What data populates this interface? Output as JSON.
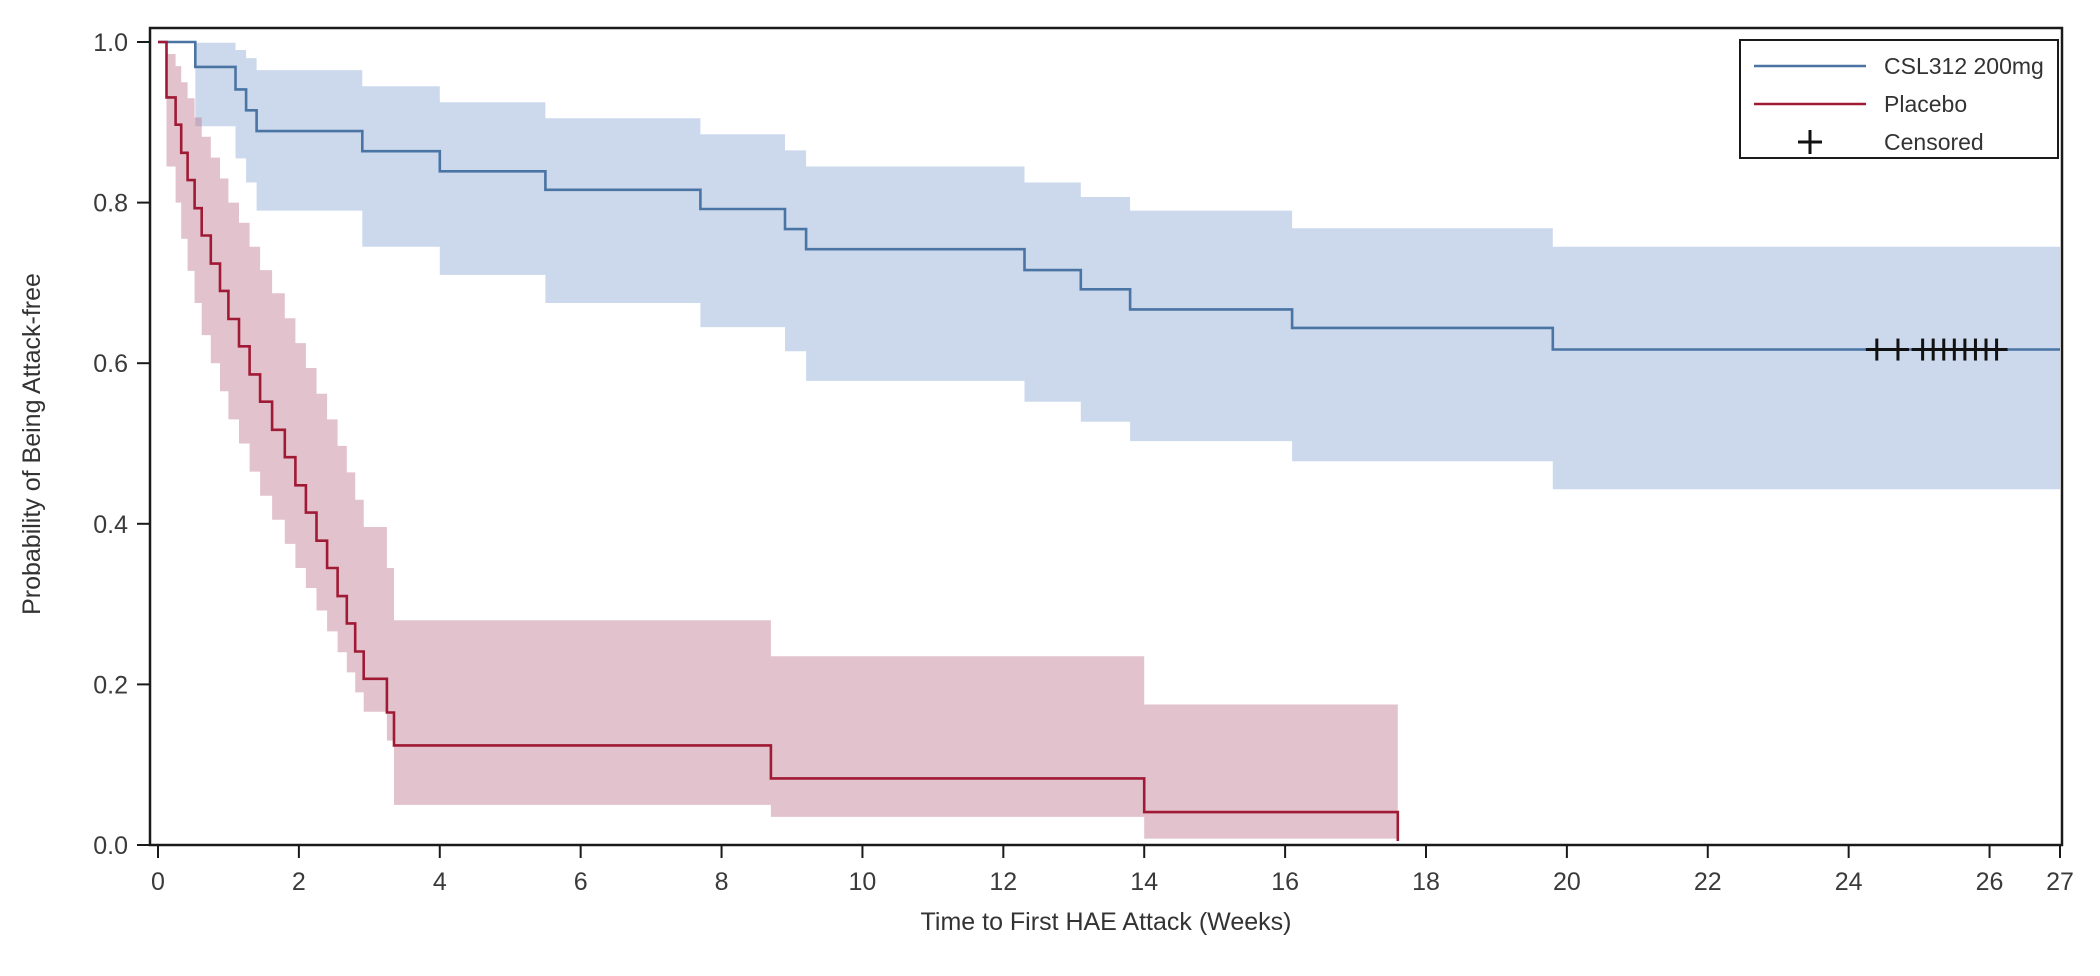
{
  "figure": {
    "background": "#ffffff"
  },
  "chart_data": {
    "type": "line",
    "subtype": "kaplan-meier-step",
    "title": "",
    "xlabel": "Time to First HAE Attack (Weeks)",
    "ylabel": "Probability of Being Attack-free",
    "xlim": [
      0,
      27
    ],
    "ylim": [
      0,
      1
    ],
    "grid": false,
    "x_ticks": [
      0,
      2,
      4,
      6,
      8,
      10,
      12,
      14,
      16,
      18,
      20,
      22,
      24,
      26,
      27
    ],
    "y_ticks": [
      {
        "v": 0.0,
        "label": "0.0"
      },
      {
        "v": 0.2,
        "label": "0.2"
      },
      {
        "v": 0.4,
        "label": "0.4"
      },
      {
        "v": 0.6,
        "label": "0.6"
      },
      {
        "v": 0.8,
        "label": "0.8"
      },
      {
        "v": 1.0,
        "label": "1.0"
      }
    ],
    "legend": {
      "position": "top-right",
      "entries": [
        {
          "label": "CSL312 200mg",
          "type": "line",
          "color": "#4a74a4"
        },
        {
          "label": "Placebo",
          "type": "line",
          "color": "#a01a35"
        },
        {
          "label": "Censored",
          "type": "marker",
          "marker": "+",
          "color": "#111111"
        }
      ]
    },
    "series": [
      {
        "name": "CSL312 200mg",
        "line_color": "#4a74a4",
        "band_color": "rgba(133,164,209,0.42)",
        "end_week": 27,
        "steps": [
          [
            0,
            1.0
          ],
          [
            0.53,
            0.969
          ],
          [
            1.1,
            0.941
          ],
          [
            1.25,
            0.915
          ],
          [
            1.4,
            0.889
          ],
          [
            2.9,
            0.864
          ],
          [
            4.0,
            0.839
          ],
          [
            5.5,
            0.816
          ],
          [
            7.7,
            0.792
          ],
          [
            8.9,
            0.767
          ],
          [
            9.2,
            0.742
          ],
          [
            12.3,
            0.716
          ],
          [
            13.1,
            0.692
          ],
          [
            13.8,
            0.667
          ],
          [
            16.1,
            0.644
          ],
          [
            19.8,
            0.617
          ]
        ],
        "ci": [
          [
            0,
            1.0,
            1.0
          ],
          [
            0.53,
            0.895,
            0.999
          ],
          [
            1.1,
            0.855,
            0.99
          ],
          [
            1.25,
            0.825,
            0.98
          ],
          [
            1.4,
            0.79,
            0.965
          ],
          [
            2.9,
            0.745,
            0.945
          ],
          [
            4.0,
            0.71,
            0.925
          ],
          [
            5.5,
            0.675,
            0.905
          ],
          [
            7.7,
            0.645,
            0.885
          ],
          [
            8.9,
            0.615,
            0.865
          ],
          [
            9.2,
            0.578,
            0.845
          ],
          [
            12.3,
            0.552,
            0.825
          ],
          [
            13.1,
            0.527,
            0.807
          ],
          [
            13.8,
            0.503,
            0.79
          ],
          [
            16.1,
            0.478,
            0.768
          ],
          [
            19.8,
            0.443,
            0.745
          ]
        ],
        "censored": {
          "value": 0.617,
          "weeks": [
            24.4,
            24.7,
            25.05,
            25.2,
            25.35,
            25.5,
            25.65,
            25.8,
            25.95,
            26.1
          ]
        }
      },
      {
        "name": "Placebo",
        "line_color": "#a01a35",
        "band_color": "rgba(186,110,136,0.42)",
        "end_week": 17.6,
        "steps": [
          [
            0,
            1.0
          ],
          [
            0.12,
            0.931
          ],
          [
            0.25,
            0.897
          ],
          [
            0.33,
            0.862
          ],
          [
            0.42,
            0.828
          ],
          [
            0.52,
            0.793
          ],
          [
            0.62,
            0.759
          ],
          [
            0.75,
            0.724
          ],
          [
            0.88,
            0.69
          ],
          [
            1.0,
            0.655
          ],
          [
            1.15,
            0.621
          ],
          [
            1.3,
            0.586
          ],
          [
            1.45,
            0.552
          ],
          [
            1.62,
            0.517
          ],
          [
            1.8,
            0.483
          ],
          [
            1.95,
            0.448
          ],
          [
            2.1,
            0.414
          ],
          [
            2.25,
            0.379
          ],
          [
            2.4,
            0.345
          ],
          [
            2.55,
            0.31
          ],
          [
            2.68,
            0.276
          ],
          [
            2.8,
            0.241
          ],
          [
            2.92,
            0.207
          ],
          [
            3.25,
            0.165
          ],
          [
            3.35,
            0.124
          ],
          [
            8.7,
            0.083
          ],
          [
            14.0,
            0.041
          ],
          [
            17.6,
            0.005
          ]
        ],
        "ci": [
          [
            0,
            1.0,
            1.0
          ],
          [
            0.12,
            0.845,
            0.985
          ],
          [
            0.25,
            0.8,
            0.97
          ],
          [
            0.33,
            0.755,
            0.95
          ],
          [
            0.42,
            0.715,
            0.93
          ],
          [
            0.52,
            0.675,
            0.906
          ],
          [
            0.62,
            0.635,
            0.882
          ],
          [
            0.75,
            0.6,
            0.856
          ],
          [
            0.88,
            0.565,
            0.83
          ],
          [
            1.0,
            0.53,
            0.8
          ],
          [
            1.15,
            0.5,
            0.775
          ],
          [
            1.3,
            0.465,
            0.745
          ],
          [
            1.45,
            0.435,
            0.716
          ],
          [
            1.62,
            0.405,
            0.687
          ],
          [
            1.8,
            0.375,
            0.656
          ],
          [
            1.95,
            0.345,
            0.625
          ],
          [
            2.1,
            0.32,
            0.594
          ],
          [
            2.25,
            0.292,
            0.562
          ],
          [
            2.4,
            0.266,
            0.53
          ],
          [
            2.55,
            0.24,
            0.497
          ],
          [
            2.68,
            0.215,
            0.464
          ],
          [
            2.8,
            0.19,
            0.43
          ],
          [
            2.92,
            0.166,
            0.396
          ],
          [
            3.25,
            0.13,
            0.345
          ],
          [
            3.35,
            0.05,
            0.28
          ],
          [
            8.7,
            0.035,
            0.235
          ],
          [
            14.0,
            0.008,
            0.175
          ]
        ],
        "censored": {
          "value": null,
          "weeks": []
        }
      }
    ]
  }
}
